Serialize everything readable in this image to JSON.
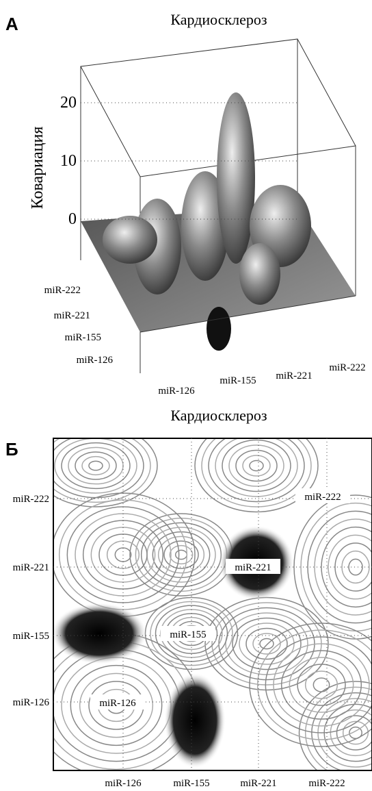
{
  "panel_a": {
    "label": "А",
    "title": "Кардиосклероз",
    "z_axis_label": "Ковариация",
    "z_ticks": [
      0,
      10,
      20
    ],
    "y_categories": [
      "miR-222",
      "miR-221",
      "miR-155",
      "miR-126"
    ],
    "x_categories": [
      "miR-126",
      "miR-155",
      "miR-221",
      "miR-222"
    ]
  },
  "panel_b": {
    "label": "Б",
    "title": "Кардиосклероз",
    "y_categories": [
      "miR-222",
      "miR-221",
      "miR-155",
      "miR-126"
    ],
    "x_categories": [
      "miR-126",
      "miR-155",
      "miR-221",
      "miR-222"
    ],
    "annotations": [
      "miR-222",
      "miR-221",
      "miR-155",
      "miR-126"
    ]
  }
}
